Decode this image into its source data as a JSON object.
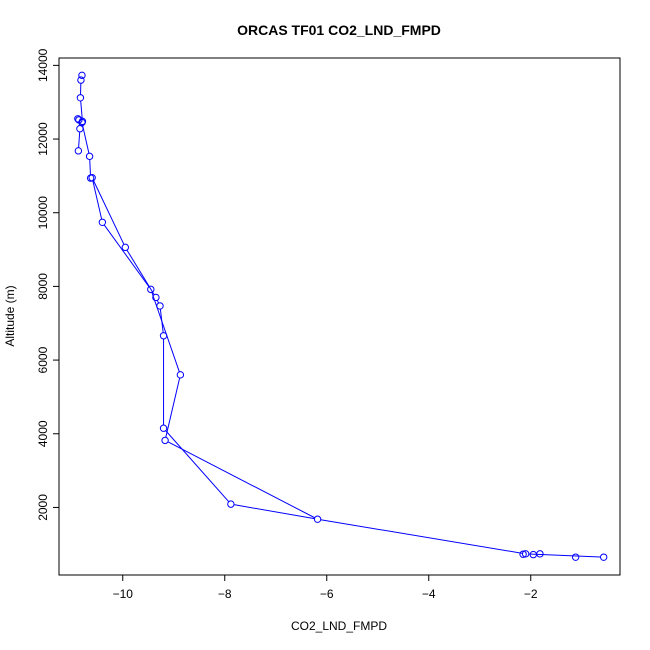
{
  "chart_data": {
    "type": "line",
    "title": "ORCAS TF01 CO2_LND_FMPD",
    "xlabel": "CO2_LND_FMPD",
    "ylabel": "Altitude (m)",
    "xlim": [
      -11.25,
      -0.25
    ],
    "ylim": [
      166,
      14200
    ],
    "xticks": [
      -10,
      -8,
      -6,
      -4,
      -2
    ],
    "yticks": [
      2000,
      4000,
      6000,
      8000,
      10000,
      12000,
      14000
    ],
    "grid": false,
    "legend": "none",
    "series_color": "#0000ff",
    "points": [
      {
        "x": -10.8,
        "y": 13730
      },
      {
        "x": -10.82,
        "y": 13600
      },
      {
        "x": -10.83,
        "y": 13120
      },
      {
        "x": -10.79,
        "y": 12480
      },
      {
        "x": -10.88,
        "y": 12550
      },
      {
        "x": -10.86,
        "y": 12520
      },
      {
        "x": -10.8,
        "y": 12450
      },
      {
        "x": -10.84,
        "y": 12280
      },
      {
        "x": -10.65,
        "y": 11530
      },
      {
        "x": -10.87,
        "y": 11680
      },
      {
        "x": -10.63,
        "y": 10940
      },
      {
        "x": -10.6,
        "y": 10950
      },
      {
        "x": -10.4,
        "y": 9740
      },
      {
        "x": -9.95,
        "y": 9060
      },
      {
        "x": -9.45,
        "y": 7920
      },
      {
        "x": -9.35,
        "y": 7700
      },
      {
        "x": -9.27,
        "y": 7470
      },
      {
        "x": -9.2,
        "y": 6660
      },
      {
        "x": -8.87,
        "y": 5600
      },
      {
        "x": -9.2,
        "y": 4150
      },
      {
        "x": -9.17,
        "y": 3820
      },
      {
        "x": -7.88,
        "y": 2090
      },
      {
        "x": -6.18,
        "y": 1680
      },
      {
        "x": -2.15,
        "y": 730
      },
      {
        "x": -2.1,
        "y": 740
      },
      {
        "x": -1.95,
        "y": 720
      },
      {
        "x": -1.82,
        "y": 740
      },
      {
        "x": -1.12,
        "y": 650
      },
      {
        "x": -0.57,
        "y": 650
      }
    ],
    "segments": [
      [
        0,
        1
      ],
      [
        1,
        2
      ],
      [
        2,
        3
      ],
      [
        3,
        7
      ],
      [
        7,
        9
      ],
      [
        4,
        5
      ],
      [
        5,
        6
      ],
      [
        6,
        8
      ],
      [
        8,
        10
      ],
      [
        10,
        11
      ],
      [
        11,
        13
      ],
      [
        13,
        15
      ],
      [
        15,
        16
      ],
      [
        16,
        17
      ],
      [
        17,
        19
      ],
      [
        19,
        21
      ],
      [
        21,
        22
      ],
      [
        11,
        12
      ],
      [
        12,
        14
      ],
      [
        14,
        18
      ],
      [
        18,
        20
      ],
      [
        20,
        22
      ],
      [
        22,
        24
      ],
      [
        24,
        28
      ]
    ]
  }
}
